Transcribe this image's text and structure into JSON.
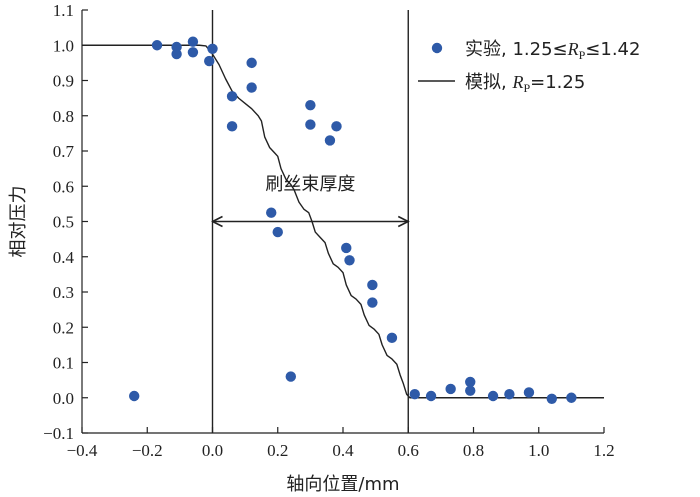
{
  "chart_data": {
    "type": "scatter",
    "xlabel": "轴向位置/mm",
    "ylabel": "相对压力",
    "xlim": [
      -0.4,
      1.2
    ],
    "ylim": [
      -0.1,
      1.1
    ],
    "x_ticks": [
      -0.4,
      -0.2,
      0.0,
      0.2,
      0.4,
      0.6,
      0.8,
      1.0,
      1.2
    ],
    "x_tick_labels": [
      "−0.4",
      "−0.2",
      "0.0",
      "0.2",
      "0.4",
      "0.6",
      "0.8",
      "1.0",
      "1.2"
    ],
    "y_ticks": [
      -0.1,
      0.0,
      0.1,
      0.2,
      0.3,
      0.4,
      0.5,
      0.6,
      0.7,
      0.8,
      0.9,
      1.0,
      1.1
    ],
    "y_tick_labels": [
      "−0.1",
      "0.0",
      "0.1",
      "0.2",
      "0.3",
      "0.4",
      "0.5",
      "0.6",
      "0.7",
      "0.8",
      "0.9",
      "1.0",
      "1.1"
    ],
    "grid": false,
    "legend_position": "top-right",
    "colors": {
      "marker": "#2e5aa8",
      "line": "#222222",
      "axis": "#222222"
    },
    "series": [
      {
        "name": "实验, 1.25≤R_P≤1.42",
        "kind": "scatter",
        "legend": {
          "prefix": "实验, 1.25≤",
          "var": "R",
          "sub": "P",
          "suffix": "≤1.42"
        },
        "points": [
          {
            "x": -0.24,
            "y": 0.005
          },
          {
            "x": -0.17,
            "y": 1.0
          },
          {
            "x": -0.11,
            "y": 0.995
          },
          {
            "x": -0.11,
            "y": 0.975
          },
          {
            "x": -0.06,
            "y": 1.01
          },
          {
            "x": -0.06,
            "y": 0.98
          },
          {
            "x": -0.01,
            "y": 0.955
          },
          {
            "x": 0.0,
            "y": 0.99
          },
          {
            "x": 0.06,
            "y": 0.855
          },
          {
            "x": 0.06,
            "y": 0.77
          },
          {
            "x": 0.12,
            "y": 0.95
          },
          {
            "x": 0.12,
            "y": 0.88
          },
          {
            "x": 0.18,
            "y": 0.525
          },
          {
            "x": 0.2,
            "y": 0.47
          },
          {
            "x": 0.24,
            "y": 0.06
          },
          {
            "x": 0.3,
            "y": 0.83
          },
          {
            "x": 0.3,
            "y": 0.775
          },
          {
            "x": 0.36,
            "y": 0.73
          },
          {
            "x": 0.38,
            "y": 0.77
          },
          {
            "x": 0.41,
            "y": 0.425
          },
          {
            "x": 0.42,
            "y": 0.39
          },
          {
            "x": 0.49,
            "y": 0.32
          },
          {
            "x": 0.49,
            "y": 0.27
          },
          {
            "x": 0.55,
            "y": 0.17
          },
          {
            "x": 0.62,
            "y": 0.01
          },
          {
            "x": 0.67,
            "y": 0.005
          },
          {
            "x": 0.73,
            "y": 0.025
          },
          {
            "x": 0.79,
            "y": 0.045
          },
          {
            "x": 0.79,
            "y": 0.02
          },
          {
            "x": 0.86,
            "y": 0.005
          },
          {
            "x": 0.91,
            "y": 0.01
          },
          {
            "x": 0.97,
            "y": 0.015
          },
          {
            "x": 1.04,
            "y": -0.003
          },
          {
            "x": 1.1,
            "y": 0.0
          }
        ]
      },
      {
        "name": "模拟, R_P=1.25",
        "kind": "line",
        "legend": {
          "prefix": "模拟, ",
          "var": "R",
          "sub": "P",
          "suffix": "=1.25"
        },
        "points": [
          {
            "x": -0.4,
            "y": 1.0
          },
          {
            "x": -0.04,
            "y": 1.0
          },
          {
            "x": -0.02,
            "y": 0.998
          },
          {
            "x": 0.0,
            "y": 0.975
          },
          {
            "x": 0.02,
            "y": 0.945
          },
          {
            "x": 0.04,
            "y": 0.905
          },
          {
            "x": 0.06,
            "y": 0.87
          },
          {
            "x": 0.08,
            "y": 0.85
          },
          {
            "x": 0.1,
            "y": 0.835
          },
          {
            "x": 0.12,
            "y": 0.82
          },
          {
            "x": 0.14,
            "y": 0.8
          },
          {
            "x": 0.15,
            "y": 0.785
          },
          {
            "x": 0.16,
            "y": 0.74
          },
          {
            "x": 0.175,
            "y": 0.71
          },
          {
            "x": 0.19,
            "y": 0.695
          },
          {
            "x": 0.2,
            "y": 0.685
          },
          {
            "x": 0.21,
            "y": 0.65
          },
          {
            "x": 0.225,
            "y": 0.62
          },
          {
            "x": 0.24,
            "y": 0.605
          },
          {
            "x": 0.25,
            "y": 0.59
          },
          {
            "x": 0.265,
            "y": 0.555
          },
          {
            "x": 0.28,
            "y": 0.535
          },
          {
            "x": 0.295,
            "y": 0.525
          },
          {
            "x": 0.305,
            "y": 0.5
          },
          {
            "x": 0.315,
            "y": 0.47
          },
          {
            "x": 0.33,
            "y": 0.455
          },
          {
            "x": 0.345,
            "y": 0.44
          },
          {
            "x": 0.355,
            "y": 0.41
          },
          {
            "x": 0.37,
            "y": 0.38
          },
          {
            "x": 0.385,
            "y": 0.37
          },
          {
            "x": 0.4,
            "y": 0.355
          },
          {
            "x": 0.41,
            "y": 0.32
          },
          {
            "x": 0.425,
            "y": 0.29
          },
          {
            "x": 0.44,
            "y": 0.28
          },
          {
            "x": 0.455,
            "y": 0.265
          },
          {
            "x": 0.465,
            "y": 0.235
          },
          {
            "x": 0.48,
            "y": 0.205
          },
          {
            "x": 0.495,
            "y": 0.195
          },
          {
            "x": 0.51,
            "y": 0.18
          },
          {
            "x": 0.52,
            "y": 0.15
          },
          {
            "x": 0.535,
            "y": 0.12
          },
          {
            "x": 0.55,
            "y": 0.11
          },
          {
            "x": 0.565,
            "y": 0.095
          },
          {
            "x": 0.575,
            "y": 0.065
          },
          {
            "x": 0.585,
            "y": 0.04
          },
          {
            "x": 0.595,
            "y": 0.01
          },
          {
            "x": 0.605,
            "y": 0.0
          },
          {
            "x": 1.2,
            "y": 0.0
          }
        ]
      }
    ],
    "vertical_lines": [
      0.0,
      0.6
    ],
    "annotation": {
      "text": "刷丝束厚度",
      "arrow_from": 0.0,
      "arrow_to": 0.6,
      "arrow_y": 0.5,
      "text_x": 0.3,
      "text_y": 0.59
    }
  }
}
